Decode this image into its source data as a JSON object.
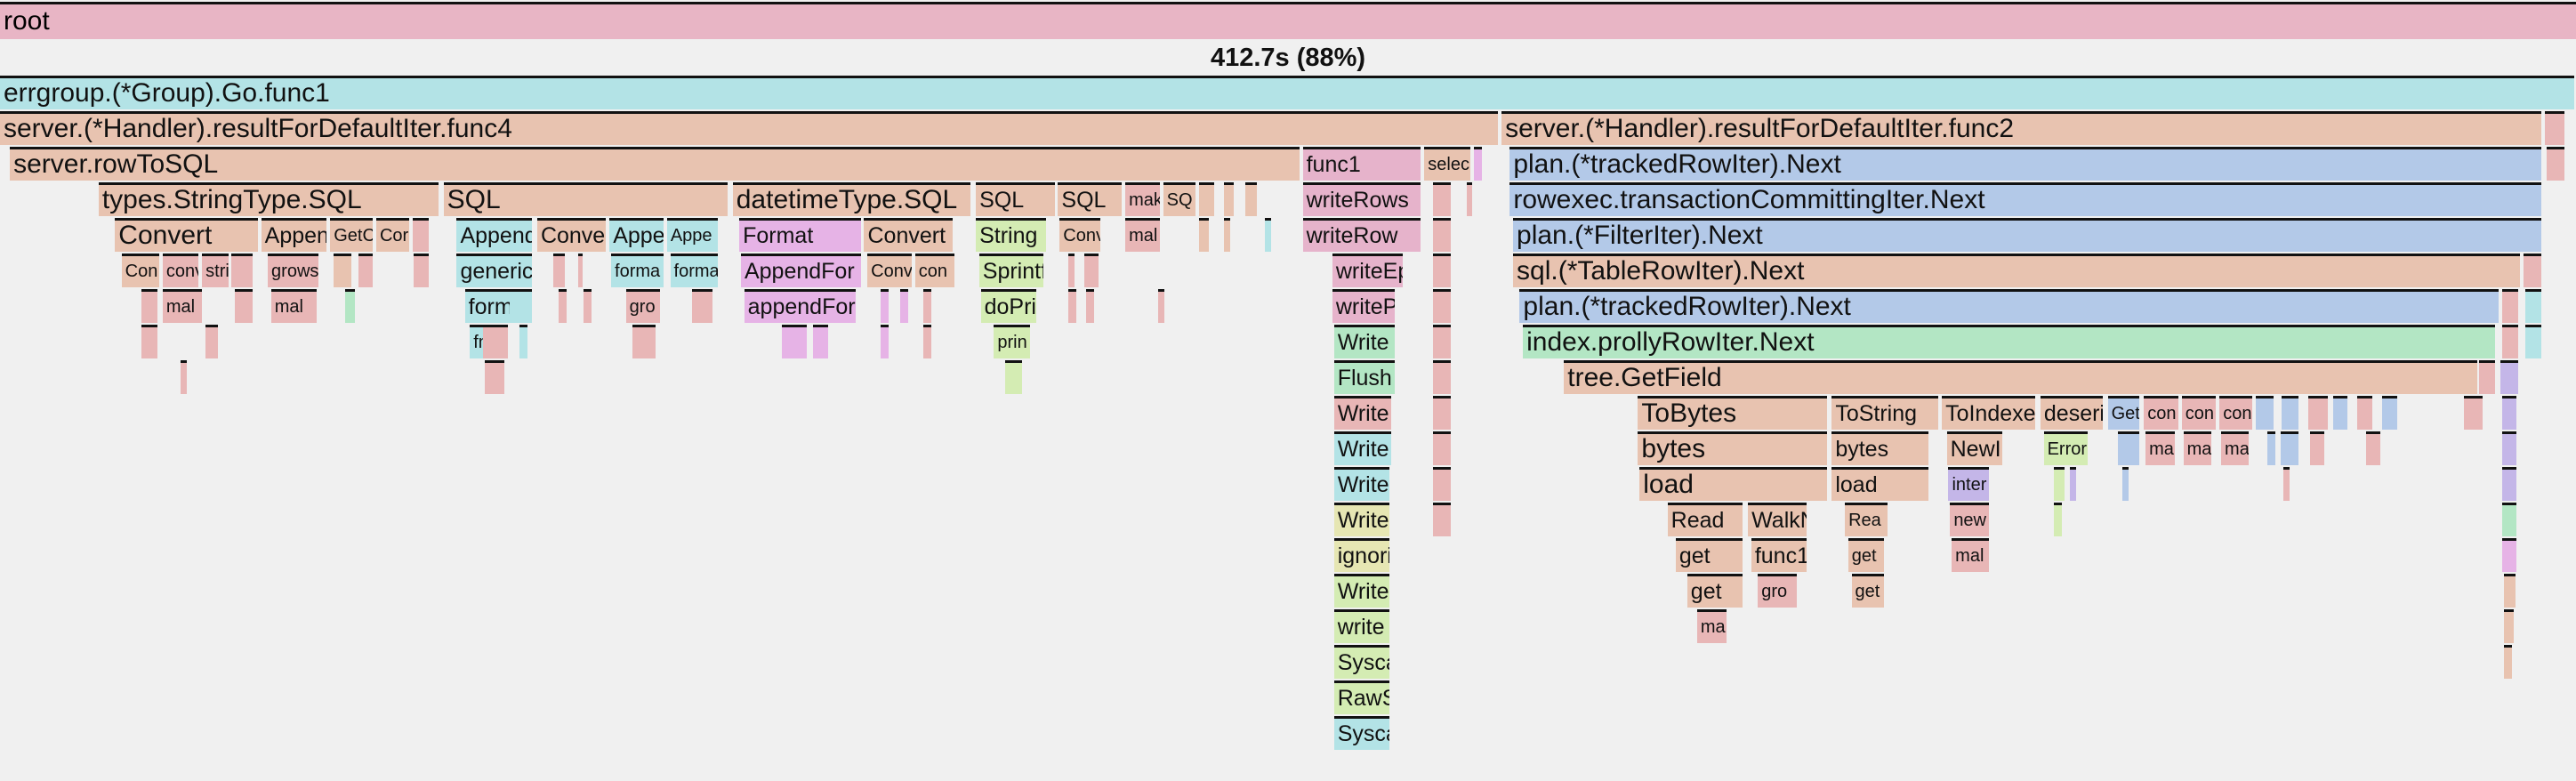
{
  "root": {
    "label": "root",
    "color": "#e8b5c5"
  },
  "total": "412.7s (88%)",
  "palette": {
    "salmon": "#e8c3b0",
    "pink": "#e8b6b6",
    "rose": "#e6b3cb",
    "teal": "#b3e3e6",
    "blue": "#b3c9e8",
    "green": "#b3e6c4",
    "lime": "#d4ecb3",
    "magenta": "#e6b3e6",
    "yellow": "#e6e6b3",
    "purple": "#c4b6e8"
  },
  "frames": [
    {
      "label": "errgroup.(*Group).Go.func1",
      "color": "teal"
    },
    {
      "label": "server.(*Handler).resultForDefaultIter.func4",
      "color": "salmon"
    },
    {
      "label": "server.(*Handler).resultForDefaultIter.func2",
      "color": "salmon"
    },
    {
      "label": "server.rowToSQL",
      "color": "salmon"
    },
    {
      "label": "func1",
      "color": "rose"
    },
    {
      "label": "selec",
      "color": "salmon"
    },
    {
      "label": "plan.(*trackedRowIter).Next",
      "color": "blue"
    },
    {
      "label": "types.StringType.SQL",
      "color": "salmon"
    },
    {
      "label": "SQL",
      "color": "salmon"
    },
    {
      "label": "datetimeType.SQL",
      "color": "salmon"
    },
    {
      "label": "SQL",
      "color": "salmon"
    },
    {
      "label": "SQL",
      "color": "salmon"
    },
    {
      "label": "mak",
      "color": "pink"
    },
    {
      "label": "SQ",
      "color": "salmon"
    },
    {
      "label": "writeRows",
      "color": "rose"
    },
    {
      "label": "rowexec.transactionCommittingIter.Next",
      "color": "blue"
    },
    {
      "label": "Convert",
      "color": "salmon"
    },
    {
      "label": "Append",
      "color": "salmon"
    },
    {
      "label": "GetC",
      "color": "salmon"
    },
    {
      "label": "Cor",
      "color": "salmon"
    },
    {
      "label": "AppendF",
      "color": "teal"
    },
    {
      "label": "Convert",
      "color": "salmon"
    },
    {
      "label": "Appen",
      "color": "teal"
    },
    {
      "label": "Appe",
      "color": "teal"
    },
    {
      "label": "Format",
      "color": "magenta"
    },
    {
      "label": "Convert",
      "color": "salmon"
    },
    {
      "label": "String",
      "color": "lime"
    },
    {
      "label": "Conv",
      "color": "salmon"
    },
    {
      "label": "mal",
      "color": "pink"
    },
    {
      "label": "writeRow",
      "color": "rose"
    },
    {
      "label": "plan.(*FilterIter).Next",
      "color": "blue"
    },
    {
      "label": "Con",
      "color": "salmon"
    },
    {
      "label": "conv",
      "color": "pink"
    },
    {
      "label": "stri",
      "color": "pink"
    },
    {
      "label": "grows",
      "color": "pink"
    },
    {
      "label": "genericF",
      "color": "teal"
    },
    {
      "label": "forma",
      "color": "teal"
    },
    {
      "label": "forma",
      "color": "teal"
    },
    {
      "label": "AppendFor",
      "color": "magenta"
    },
    {
      "label": "Conv",
      "color": "salmon"
    },
    {
      "label": "con",
      "color": "salmon"
    },
    {
      "label": "Sprintf",
      "color": "lime"
    },
    {
      "label": "writeEpl",
      "color": "rose"
    },
    {
      "label": "sql.(*TableRowIter).Next",
      "color": "salmon"
    },
    {
      "label": "mal",
      "color": "pink"
    },
    {
      "label": "mal",
      "color": "pink"
    },
    {
      "label": "form",
      "color": "teal"
    },
    {
      "label": "gro",
      "color": "pink"
    },
    {
      "label": "appendFor",
      "color": "magenta"
    },
    {
      "label": "doPrin",
      "color": "lime"
    },
    {
      "label": "writePa",
      "color": "rose"
    },
    {
      "label": "plan.(*trackedRowIter).Next",
      "color": "blue"
    },
    {
      "label": "fmtF",
      "color": "teal"
    },
    {
      "label": "prin",
      "color": "lime"
    },
    {
      "label": "Write",
      "color": "green"
    },
    {
      "label": "index.prollyRowIter.Next",
      "color": "green"
    },
    {
      "label": "Flush",
      "color": "green"
    },
    {
      "label": "tree.GetField",
      "color": "salmon"
    },
    {
      "label": "Write",
      "color": "pink"
    },
    {
      "label": "ToBytes",
      "color": "salmon"
    },
    {
      "label": "ToString",
      "color": "salmon"
    },
    {
      "label": "ToIndexedJ",
      "color": "salmon"
    },
    {
      "label": "deseria",
      "color": "salmon"
    },
    {
      "label": "GetI",
      "color": "blue"
    },
    {
      "label": "con",
      "color": "pink"
    },
    {
      "label": "con",
      "color": "pink"
    },
    {
      "label": "con",
      "color": "pink"
    },
    {
      "label": "Write",
      "color": "teal"
    },
    {
      "label": "bytes",
      "color": "salmon"
    },
    {
      "label": "bytes",
      "color": "salmon"
    },
    {
      "label": "NewInd",
      "color": "salmon"
    },
    {
      "label": "Error",
      "color": "lime"
    },
    {
      "label": "ma",
      "color": "pink"
    },
    {
      "label": "ma",
      "color": "pink"
    },
    {
      "label": "ma",
      "color": "pink"
    },
    {
      "label": "Write",
      "color": "teal"
    },
    {
      "label": "load",
      "color": "salmon"
    },
    {
      "label": "load",
      "color": "salmon"
    },
    {
      "label": "inter",
      "color": "purple"
    },
    {
      "label": "Write",
      "color": "yellow"
    },
    {
      "label": "Read",
      "color": "salmon"
    },
    {
      "label": "WalkN",
      "color": "salmon"
    },
    {
      "label": "Rea",
      "color": "salmon"
    },
    {
      "label": "new",
      "color": "pink"
    },
    {
      "label": "ignorin",
      "color": "yellow"
    },
    {
      "label": "get",
      "color": "salmon"
    },
    {
      "label": "func1",
      "color": "salmon"
    },
    {
      "label": "get",
      "color": "salmon"
    },
    {
      "label": "mal",
      "color": "pink"
    },
    {
      "label": "Write",
      "color": "lime"
    },
    {
      "label": "get",
      "color": "salmon"
    },
    {
      "label": "gro",
      "color": "pink"
    },
    {
      "label": "get",
      "color": "salmon"
    },
    {
      "label": "write",
      "color": "lime"
    },
    {
      "label": "ma",
      "color": "pink"
    },
    {
      "label": "Sysca",
      "color": "lime"
    },
    {
      "label": "RawS",
      "color": "lime"
    },
    {
      "label": "Sysca",
      "color": "teal"
    }
  ]
}
